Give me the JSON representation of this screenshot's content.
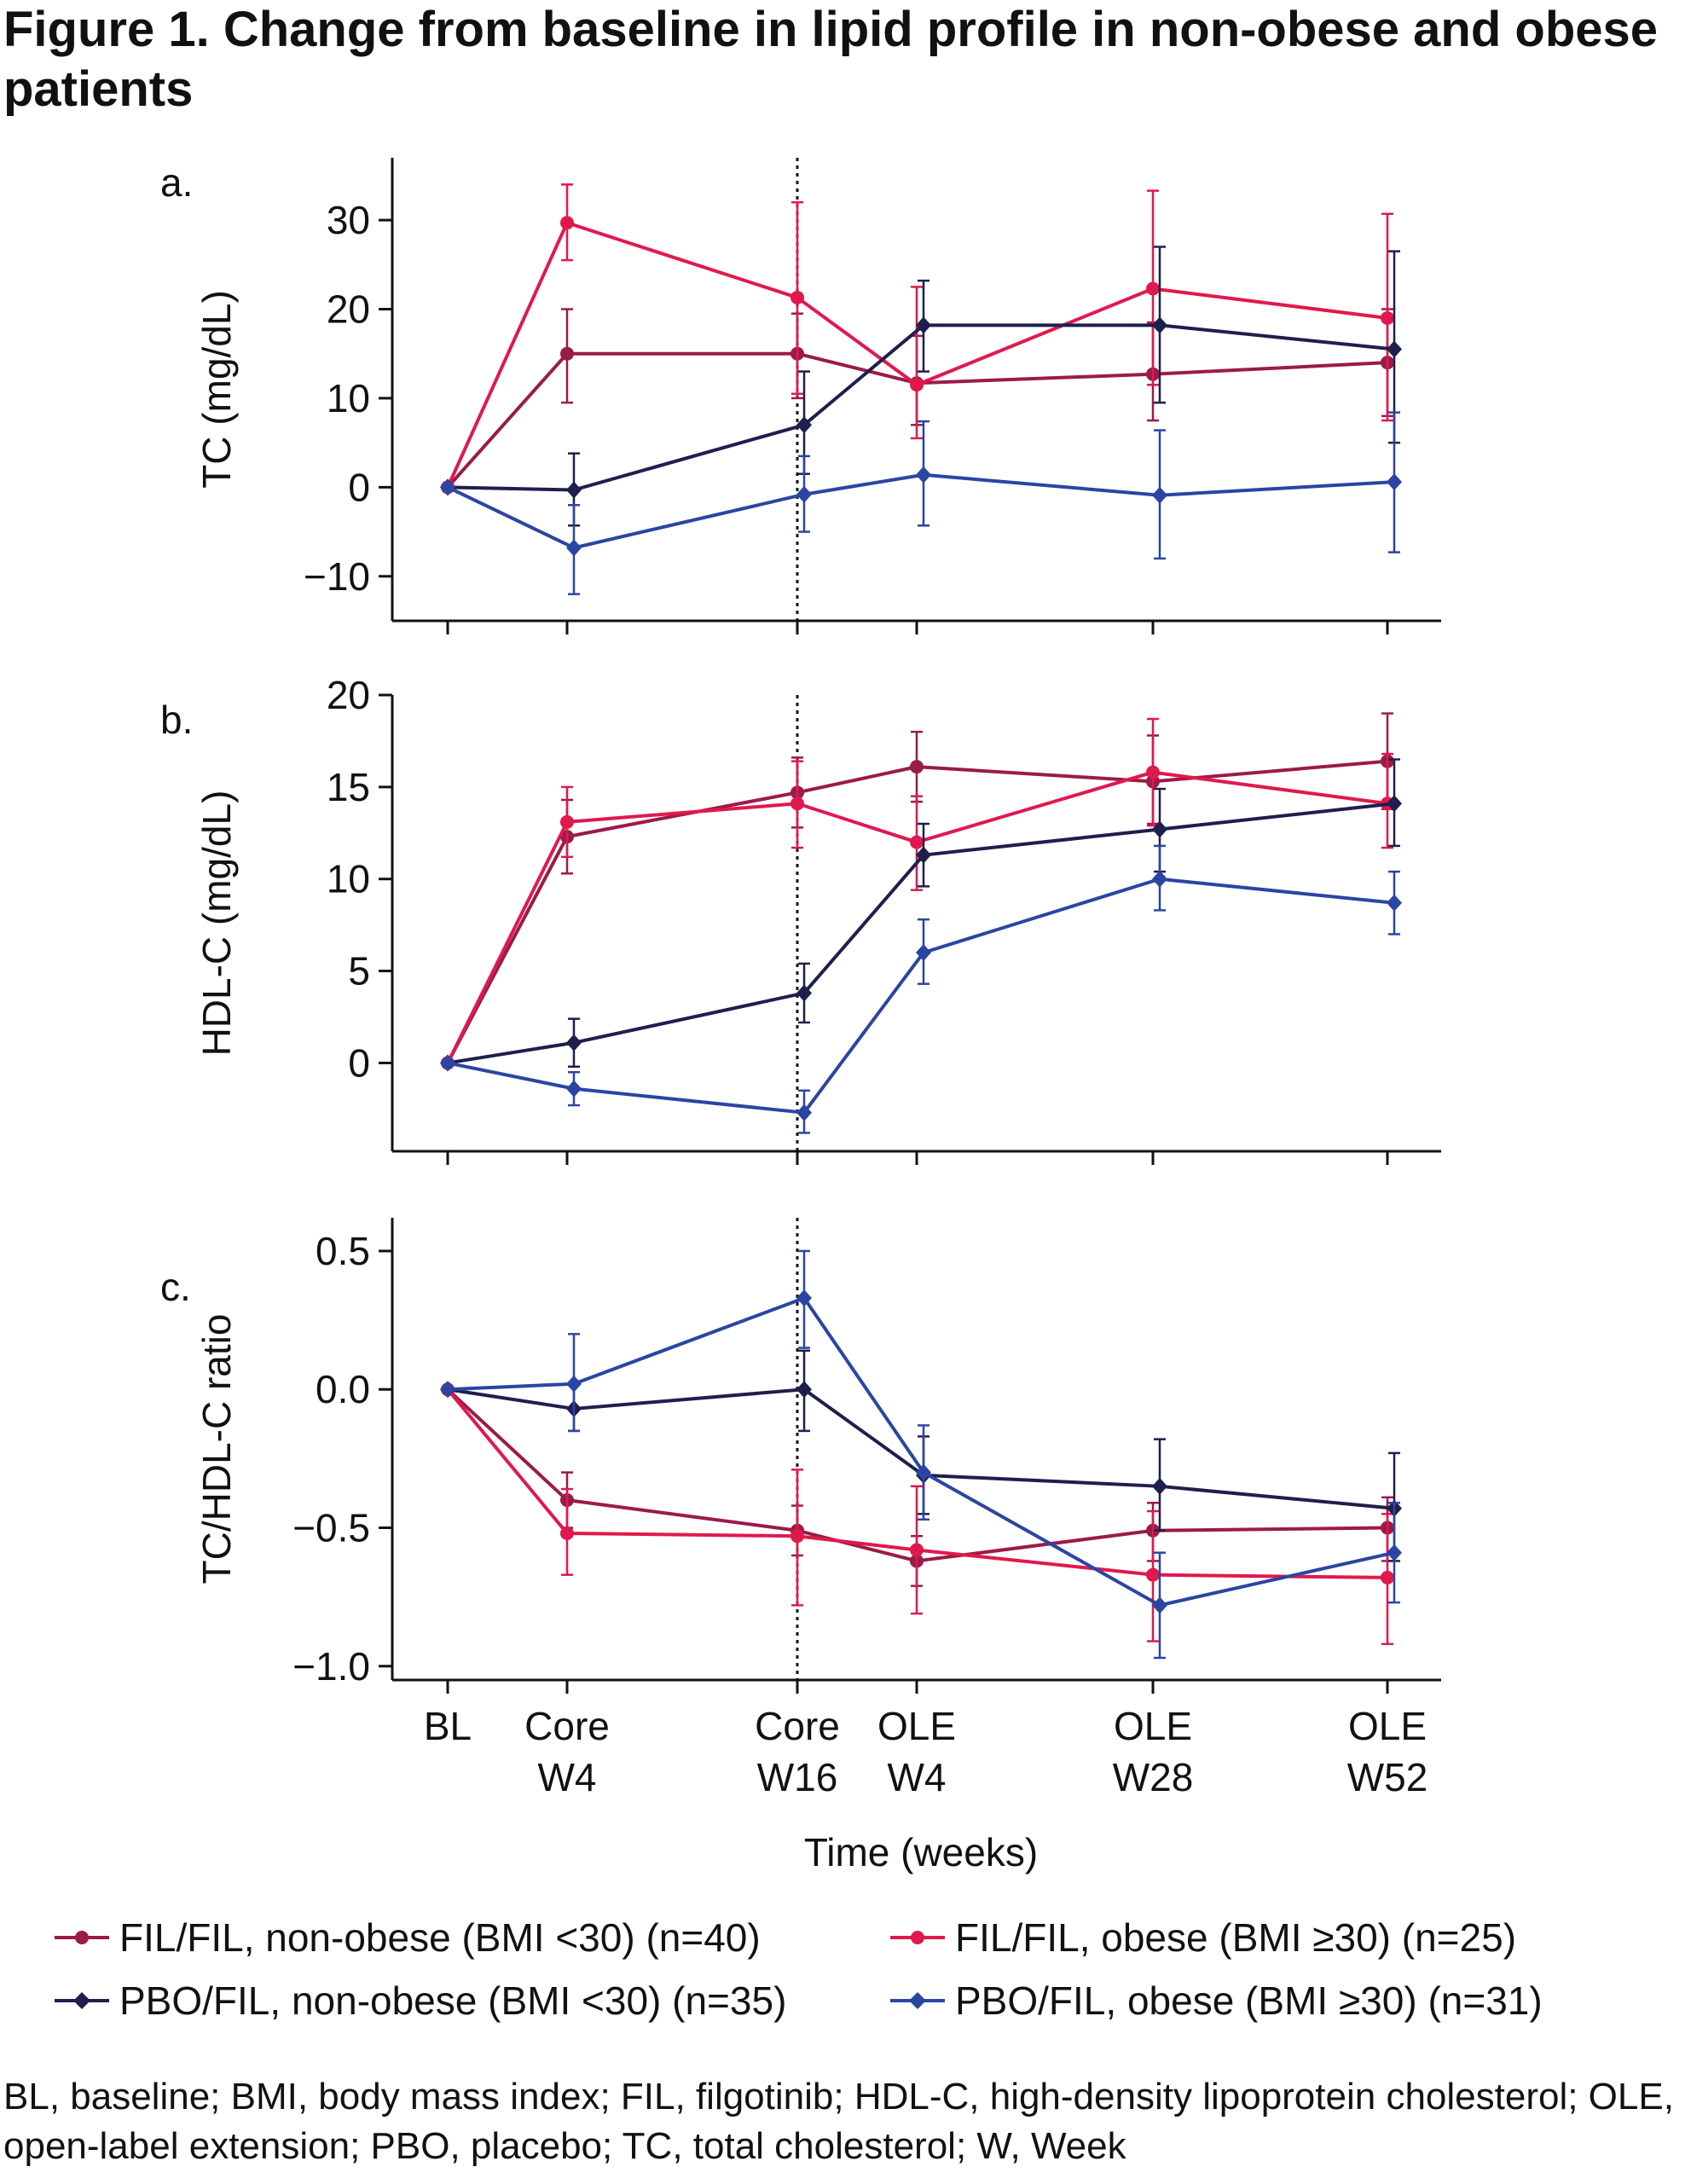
{
  "figure": {
    "title_bold": "Figure 1.",
    "title_rest": " Change from baseline in lipid profile in non-obese and obese patients"
  },
  "chart_data": [
    {
      "type": "line",
      "panel_letter": "a.",
      "ylabel": "TC (mg/dL)",
      "ylim": [
        -15,
        37
      ],
      "yticks": [
        -10,
        0,
        10,
        20,
        30
      ],
      "ytick_labels": [
        "−10",
        "0",
        "10",
        "20",
        "30"
      ],
      "x": [
        "BL",
        "Core W4",
        "Core W16",
        "OLE W4",
        "OLE W28",
        "OLE W52"
      ],
      "x_weeks": [
        0,
        4,
        16,
        20,
        44,
        68
      ],
      "series": [
        {
          "name": "FIL/FIL, non-obese (BMI <30) (n=40)",
          "values": [
            0,
            15,
            15,
            11.7,
            12.7,
            14.0
          ],
          "err_low": [
            0,
            9.5,
            10.0,
            7.0,
            7.5,
            8.0
          ],
          "err_high": [
            0,
            20.0,
            19.5,
            17.0,
            18.5,
            20.0
          ]
        },
        {
          "name": "FIL/FIL, obese (BMI ≥30) (n=25)",
          "values": [
            0,
            29.7,
            21.3,
            11.5,
            22.3,
            19.0
          ],
          "err_low": [
            0,
            25.5,
            10.5,
            5.5,
            11.5,
            7.5
          ],
          "err_high": [
            0,
            34.0,
            32.0,
            22.5,
            33.3,
            30.7
          ]
        },
        {
          "name": "PBO/FIL, non-obese (BMI <30) (n=35)",
          "values": [
            0,
            -0.3,
            7.0,
            18.2,
            18.2,
            15.5
          ],
          "err_low": [
            0,
            -4.3,
            1.5,
            13.0,
            9.5,
            5.0
          ],
          "err_high": [
            0,
            3.8,
            13.0,
            23.2,
            27.0,
            26.5
          ]
        },
        {
          "name": "PBO/FIL, obese (BMI ≥30) (n=31)",
          "values": [
            0,
            -6.8,
            -0.8,
            1.4,
            -0.9,
            0.6
          ],
          "err_low": [
            0,
            -12.0,
            -5.0,
            -4.3,
            -8.0,
            -7.3
          ],
          "err_high": [
            0,
            -2.0,
            3.5,
            7.4,
            6.4,
            8.4
          ]
        }
      ]
    },
    {
      "type": "line",
      "panel_letter": "b.",
      "ylabel": "HDL-C (mg/dL)",
      "ylim": [
        -4.8,
        20
      ],
      "yticks": [
        0,
        5,
        10,
        15,
        20
      ],
      "ytick_labels": [
        "0",
        "5",
        "10",
        "15",
        "20"
      ],
      "x": [
        "BL",
        "Core W4",
        "Core W16",
        "OLE W4",
        "OLE W28",
        "OLE W52"
      ],
      "x_weeks": [
        0,
        4,
        16,
        20,
        44,
        68
      ],
      "series": [
        {
          "name": "FIL/FIL, non-obese (BMI <30) (n=40)",
          "values": [
            0,
            12.3,
            14.7,
            16.1,
            15.3,
            16.4
          ],
          "err_low": [
            0,
            10.3,
            12.8,
            14.2,
            13.0,
            13.8
          ],
          "err_high": [
            0,
            14.3,
            16.6,
            18.0,
            17.8,
            19.0
          ]
        },
        {
          "name": "FIL/FIL, obese (BMI ≥30) (n=25)",
          "values": [
            0,
            13.1,
            14.1,
            12.0,
            15.8,
            14.1
          ],
          "err_low": [
            0,
            11.2,
            11.7,
            9.4,
            12.9,
            11.7
          ],
          "err_high": [
            0,
            15.0,
            16.4,
            14.5,
            18.7,
            16.8
          ]
        },
        {
          "name": "PBO/FIL, non-obese (BMI <30) (n=35)",
          "values": [
            0,
            1.1,
            3.8,
            11.3,
            12.7,
            14.1
          ],
          "err_low": [
            0,
            -0.2,
            2.2,
            9.6,
            10.4,
            11.8
          ],
          "err_high": [
            0,
            2.4,
            5.4,
            13.0,
            14.9,
            16.5
          ]
        },
        {
          "name": "PBO/FIL, obese (BMI ≥30) (n=31)",
          "values": [
            0,
            -1.4,
            -2.7,
            6.0,
            10.0,
            8.7
          ],
          "err_low": [
            0,
            -2.3,
            -3.8,
            4.3,
            8.3,
            7.0
          ],
          "err_high": [
            0,
            -0.5,
            -1.5,
            7.8,
            11.8,
            10.4
          ]
        }
      ]
    },
    {
      "type": "line",
      "panel_letter": "c.",
      "ylabel": "TC/HDL-C ratio",
      "ylim": [
        -1.05,
        0.62
      ],
      "yticks": [
        -1.0,
        -0.5,
        0.0,
        0.5
      ],
      "ytick_labels": [
        "−1.0",
        "−0.5",
        "0.0",
        "0.5"
      ],
      "x": [
        "BL",
        "Core W4",
        "Core W16",
        "OLE W4",
        "OLE W28",
        "OLE W52"
      ],
      "x_weeks": [
        0,
        4,
        16,
        20,
        44,
        68
      ],
      "series": [
        {
          "name": "FIL/FIL, non-obese (BMI <30) (n=40)",
          "values": [
            0,
            -0.4,
            -0.51,
            -0.62,
            -0.51,
            -0.5
          ],
          "err_low": [
            0,
            -0.5,
            -0.6,
            -0.71,
            -0.62,
            -0.62
          ],
          "err_high": [
            0,
            -0.3,
            -0.42,
            -0.53,
            -0.41,
            -0.39
          ]
        },
        {
          "name": "FIL/FIL, obese (BMI ≥30) (n=25)",
          "values": [
            0,
            -0.52,
            -0.53,
            -0.58,
            -0.67,
            -0.68
          ],
          "err_low": [
            0,
            -0.67,
            -0.78,
            -0.81,
            -0.91,
            -0.92
          ],
          "err_high": [
            0,
            -0.36,
            -0.29,
            -0.35,
            -0.44,
            -0.45
          ]
        },
        {
          "name": "PBO/FIL, non-obese (BMI <30) (n=35)",
          "values": [
            0,
            -0.07,
            0.0,
            -0.31,
            -0.35,
            -0.43
          ],
          "err_low": [
            0,
            -0.15,
            -0.15,
            -0.45,
            -0.51,
            -0.62
          ],
          "err_high": [
            0,
            0.02,
            0.14,
            -0.17,
            -0.18,
            -0.23
          ]
        },
        {
          "name": "PBO/FIL, obese (BMI ≥30) (n=31)",
          "values": [
            0,
            0.02,
            0.33,
            -0.3,
            -0.78,
            -0.59
          ],
          "err_low": [
            0,
            -0.15,
            0.15,
            -0.47,
            -0.97,
            -0.77
          ],
          "err_high": [
            0,
            0.2,
            0.5,
            -0.13,
            -0.59,
            -0.41
          ]
        }
      ]
    }
  ],
  "x_axis": {
    "ticks_line1": [
      "BL",
      "Core",
      "Core",
      "OLE",
      "OLE",
      "OLE"
    ],
    "ticks_line2": [
      "",
      "W4",
      "W16",
      "W4",
      "W28",
      "W52"
    ],
    "label": "Time (weeks)"
  },
  "series_styles": [
    {
      "color": "#9b1b48",
      "marker": "circle"
    },
    {
      "color": "#e0194d",
      "marker": "circle"
    },
    {
      "color": "#1e1f4d",
      "marker": "diamond"
    },
    {
      "color": "#2b45a3",
      "marker": "diamond"
    }
  ],
  "legend": {
    "items": [
      {
        "label": "FIL/FIL, non-obese (BMI <30) (n=40)"
      },
      {
        "label": "FIL/FIL, obese (BMI ≥30) (n=25)"
      },
      {
        "label": "PBO/FIL, non-obese (BMI <30) (n=35)"
      },
      {
        "label": "PBO/FIL, obese (BMI ≥30) (n=31)"
      }
    ]
  },
  "footnote": "BL, baseline; BMI, body mass index; FIL, filgotinib; HDL-C, high-density lipoprotein cholesterol; OLE, open-label extension; PBO, placebo; TC, total cholesterol; W, Week"
}
